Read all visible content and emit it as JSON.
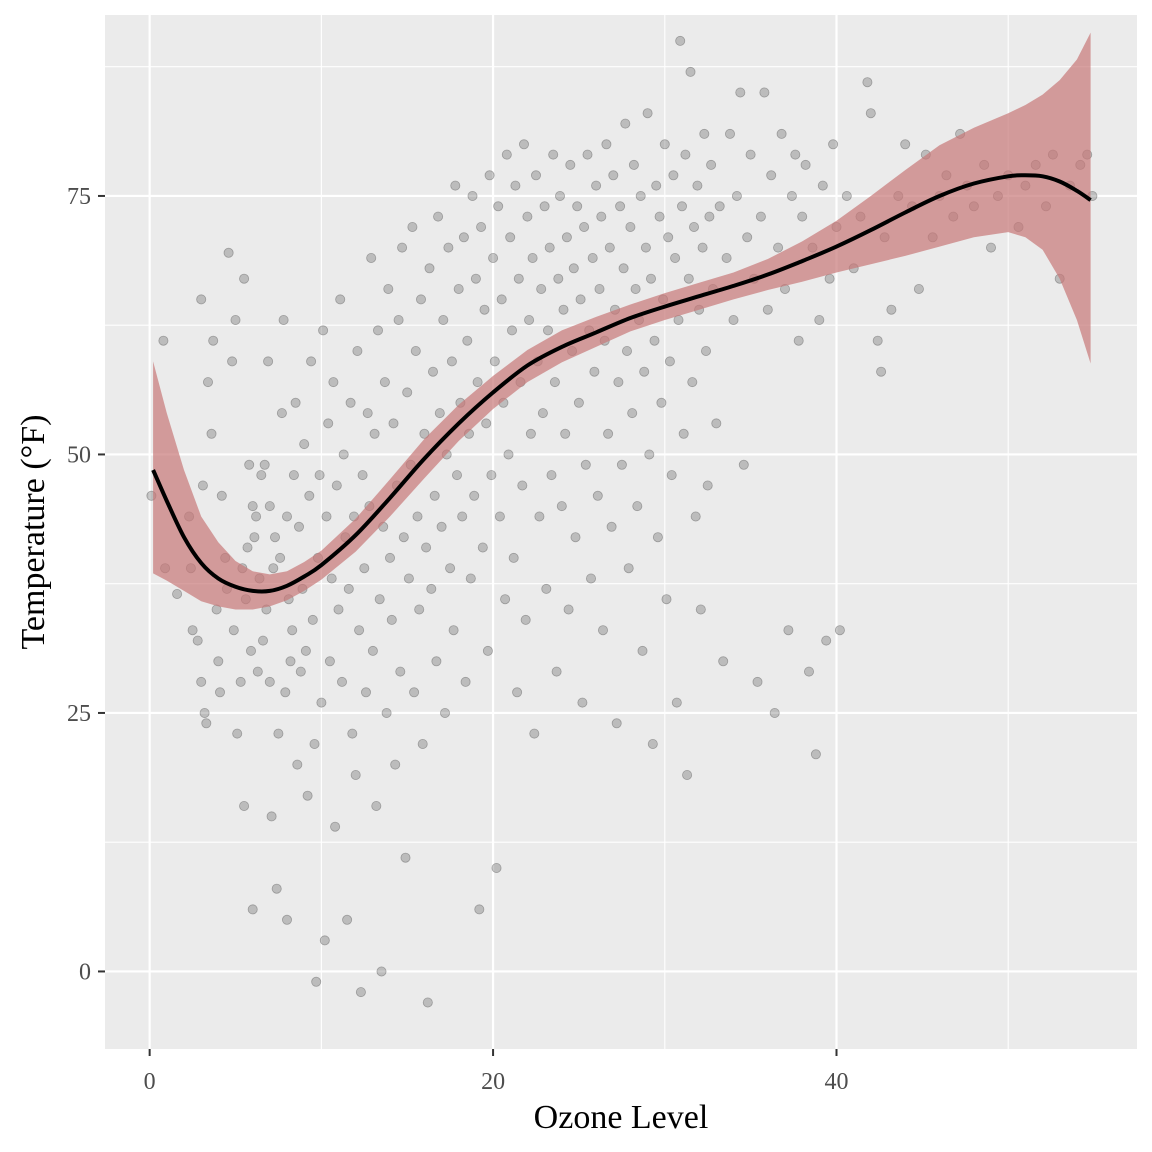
{
  "chart_data": {
    "type": "scatter",
    "xlabel": "Ozone Level",
    "ylabel": "Temperature (°F)",
    "xlim": [
      -2.6,
      57.5
    ],
    "ylim": [
      -7.5,
      92.5
    ],
    "x_ticks": [
      0,
      20,
      40
    ],
    "y_ticks": [
      0,
      25,
      50,
      75
    ],
    "grid": true,
    "colors": {
      "panel": "#ebebeb",
      "grid": "#ffffff",
      "points": "#595959",
      "ribbon": "#c87777",
      "smooth_line": "#000000"
    },
    "points": [
      [
        0.1,
        46
      ],
      [
        0.8,
        61
      ],
      [
        0.9,
        39
      ],
      [
        1.6,
        36.5
      ],
      [
        2.3,
        44
      ],
      [
        2.4,
        39
      ],
      [
        2.5,
        33
      ],
      [
        2.8,
        32
      ],
      [
        3.0,
        65
      ],
      [
        3.0,
        28
      ],
      [
        3.1,
        47
      ],
      [
        3.2,
        25
      ],
      [
        3.3,
        24
      ],
      [
        3.4,
        57
      ],
      [
        3.6,
        52
      ],
      [
        3.7,
        61
      ],
      [
        3.9,
        35
      ],
      [
        4.0,
        30
      ],
      [
        4.1,
        27
      ],
      [
        4.2,
        46
      ],
      [
        4.4,
        40
      ],
      [
        4.5,
        37
      ],
      [
        4.6,
        69.5
      ],
      [
        4.8,
        59
      ],
      [
        4.9,
        33
      ],
      [
        5.0,
        63
      ],
      [
        5.1,
        23
      ],
      [
        5.3,
        28
      ],
      [
        5.4,
        39
      ],
      [
        5.5,
        16
      ],
      [
        5.5,
        67
      ],
      [
        5.6,
        36
      ],
      [
        5.7,
        41
      ],
      [
        5.8,
        49
      ],
      [
        5.9,
        31
      ],
      [
        6.0,
        45
      ],
      [
        6.0,
        6
      ],
      [
        6.1,
        42
      ],
      [
        6.2,
        44
      ],
      [
        6.3,
        29
      ],
      [
        6.4,
        38
      ],
      [
        6.5,
        48
      ],
      [
        6.6,
        32
      ],
      [
        6.7,
        49
      ],
      [
        6.8,
        35
      ],
      [
        6.9,
        59
      ],
      [
        7.0,
        45
      ],
      [
        7.0,
        28
      ],
      [
        7.1,
        15
      ],
      [
        7.2,
        39
      ],
      [
        7.3,
        42
      ],
      [
        7.4,
        8
      ],
      [
        7.5,
        23
      ],
      [
        7.6,
        40
      ],
      [
        7.7,
        54
      ],
      [
        7.8,
        63
      ],
      [
        7.9,
        27
      ],
      [
        8.0,
        44
      ],
      [
        8.0,
        5
      ],
      [
        8.1,
        36
      ],
      [
        8.2,
        30
      ],
      [
        8.3,
        33
      ],
      [
        8.4,
        48
      ],
      [
        8.5,
        55
      ],
      [
        8.6,
        20
      ],
      [
        8.7,
        43
      ],
      [
        8.8,
        29
      ],
      [
        8.9,
        37
      ],
      [
        9.0,
        51
      ],
      [
        9.1,
        31
      ],
      [
        9.2,
        17
      ],
      [
        9.3,
        46
      ],
      [
        9.4,
        59
      ],
      [
        9.5,
        34
      ],
      [
        9.6,
        22
      ],
      [
        9.7,
        -1
      ],
      [
        9.8,
        40
      ],
      [
        9.9,
        48
      ],
      [
        10.0,
        26
      ],
      [
        10.1,
        62
      ],
      [
        10.2,
        3
      ],
      [
        10.3,
        44
      ],
      [
        10.4,
        53
      ],
      [
        10.5,
        30
      ],
      [
        10.6,
        38
      ],
      [
        10.7,
        57
      ],
      [
        10.8,
        14
      ],
      [
        10.9,
        47
      ],
      [
        11.0,
        35
      ],
      [
        11.1,
        65
      ],
      [
        11.2,
        28
      ],
      [
        11.3,
        50
      ],
      [
        11.4,
        42
      ],
      [
        11.5,
        5
      ],
      [
        11.6,
        37
      ],
      [
        11.7,
        55
      ],
      [
        11.8,
        23
      ],
      [
        11.9,
        44
      ],
      [
        12.0,
        19
      ],
      [
        12.1,
        60
      ],
      [
        12.2,
        33
      ],
      [
        12.3,
        -2
      ],
      [
        12.4,
        48
      ],
      [
        12.5,
        39
      ],
      [
        12.6,
        27
      ],
      [
        12.7,
        54
      ],
      [
        12.8,
        45
      ],
      [
        12.9,
        69
      ],
      [
        13.0,
        31
      ],
      [
        13.1,
        52
      ],
      [
        13.2,
        16
      ],
      [
        13.3,
        62
      ],
      [
        13.4,
        36
      ],
      [
        13.5,
        0
      ],
      [
        13.6,
        43
      ],
      [
        13.7,
        57
      ],
      [
        13.8,
        25
      ],
      [
        13.9,
        66
      ],
      [
        14.0,
        40
      ],
      [
        14.1,
        34
      ],
      [
        14.2,
        53
      ],
      [
        14.3,
        20
      ],
      [
        14.4,
        47
      ],
      [
        14.5,
        63
      ],
      [
        14.6,
        29
      ],
      [
        14.7,
        70
      ],
      [
        14.8,
        42
      ],
      [
        14.9,
        11
      ],
      [
        15.0,
        56
      ],
      [
        15.1,
        38
      ],
      [
        15.2,
        49
      ],
      [
        15.3,
        72
      ],
      [
        15.4,
        27
      ],
      [
        15.5,
        60
      ],
      [
        15.6,
        44
      ],
      [
        15.7,
        35
      ],
      [
        15.8,
        65
      ],
      [
        15.9,
        22
      ],
      [
        16.0,
        52
      ],
      [
        16.1,
        41
      ],
      [
        16.2,
        -3
      ],
      [
        16.3,
        68
      ],
      [
        16.4,
        37
      ],
      [
        16.5,
        58
      ],
      [
        16.6,
        46
      ],
      [
        16.7,
        30
      ],
      [
        16.8,
        73
      ],
      [
        16.9,
        54
      ],
      [
        17.0,
        43
      ],
      [
        17.1,
        63
      ],
      [
        17.2,
        25
      ],
      [
        17.3,
        50
      ],
      [
        17.4,
        70
      ],
      [
        17.5,
        39
      ],
      [
        17.6,
        59
      ],
      [
        17.7,
        33
      ],
      [
        17.8,
        76
      ],
      [
        17.9,
        48
      ],
      [
        18.0,
        66
      ],
      [
        18.1,
        55
      ],
      [
        18.2,
        44
      ],
      [
        18.3,
        71
      ],
      [
        18.4,
        28
      ],
      [
        18.5,
        61
      ],
      [
        18.6,
        52
      ],
      [
        18.7,
        38
      ],
      [
        18.8,
        75
      ],
      [
        18.9,
        46
      ],
      [
        19.0,
        67
      ],
      [
        19.1,
        57
      ],
      [
        19.2,
        6
      ],
      [
        19.3,
        72
      ],
      [
        19.4,
        41
      ],
      [
        19.5,
        64
      ],
      [
        19.6,
        53
      ],
      [
        19.7,
        31
      ],
      [
        19.8,
        77
      ],
      [
        19.9,
        48
      ],
      [
        20.0,
        69
      ],
      [
        20.1,
        59
      ],
      [
        20.2,
        10
      ],
      [
        20.3,
        74
      ],
      [
        20.4,
        44
      ],
      [
        20.5,
        65
      ],
      [
        20.6,
        55
      ],
      [
        20.7,
        36
      ],
      [
        20.8,
        79
      ],
      [
        20.9,
        50
      ],
      [
        21.0,
        71
      ],
      [
        21.1,
        62
      ],
      [
        21.2,
        40
      ],
      [
        21.3,
        76
      ],
      [
        21.4,
        27
      ],
      [
        21.5,
        67
      ],
      [
        21.6,
        57
      ],
      [
        21.7,
        47
      ],
      [
        21.8,
        80
      ],
      [
        21.9,
        34
      ],
      [
        22.0,
        73
      ],
      [
        22.1,
        63
      ],
      [
        22.2,
        52
      ],
      [
        22.3,
        69
      ],
      [
        22.4,
        23
      ],
      [
        22.5,
        77
      ],
      [
        22.6,
        59
      ],
      [
        22.7,
        44
      ],
      [
        22.8,
        66
      ],
      [
        22.9,
        54
      ],
      [
        23.0,
        74
      ],
      [
        23.1,
        37
      ],
      [
        23.2,
        62
      ],
      [
        23.3,
        70
      ],
      [
        23.4,
        48
      ],
      [
        23.5,
        79
      ],
      [
        23.6,
        57
      ],
      [
        23.7,
        29
      ],
      [
        23.8,
        67
      ],
      [
        23.9,
        75
      ],
      [
        24.0,
        45
      ],
      [
        24.1,
        64
      ],
      [
        24.2,
        52
      ],
      [
        24.3,
        71
      ],
      [
        24.4,
        35
      ],
      [
        24.5,
        78
      ],
      [
        24.6,
        60
      ],
      [
        24.7,
        68
      ],
      [
        24.8,
        42
      ],
      [
        24.9,
        74
      ],
      [
        25.0,
        55
      ],
      [
        25.1,
        65
      ],
      [
        25.2,
        26
      ],
      [
        25.3,
        72
      ],
      [
        25.4,
        49
      ],
      [
        25.5,
        79
      ],
      [
        25.6,
        62
      ],
      [
        25.7,
        38
      ],
      [
        25.8,
        69
      ],
      [
        25.9,
        58
      ],
      [
        26.0,
        76
      ],
      [
        26.1,
        46
      ],
      [
        26.2,
        66
      ],
      [
        26.3,
        73
      ],
      [
        26.4,
        33
      ],
      [
        26.5,
        61
      ],
      [
        26.6,
        80
      ],
      [
        26.7,
        52
      ],
      [
        26.8,
        70
      ],
      [
        26.9,
        43
      ],
      [
        27.0,
        77
      ],
      [
        27.1,
        64
      ],
      [
        27.2,
        24
      ],
      [
        27.3,
        57
      ],
      [
        27.4,
        74
      ],
      [
        27.5,
        49
      ],
      [
        27.6,
        68
      ],
      [
        27.7,
        82
      ],
      [
        27.8,
        60
      ],
      [
        27.9,
        39
      ],
      [
        28.0,
        72
      ],
      [
        28.1,
        54
      ],
      [
        28.2,
        78
      ],
      [
        28.3,
        66
      ],
      [
        28.4,
        45
      ],
      [
        28.5,
        63
      ],
      [
        28.6,
        75
      ],
      [
        28.7,
        31
      ],
      [
        28.8,
        58
      ],
      [
        28.9,
        70
      ],
      [
        29.0,
        83
      ],
      [
        29.1,
        50
      ],
      [
        29.2,
        67
      ],
      [
        29.3,
        22
      ],
      [
        29.4,
        61
      ],
      [
        29.5,
        76
      ],
      [
        29.6,
        42
      ],
      [
        29.7,
        73
      ],
      [
        29.8,
        55
      ],
      [
        29.9,
        65
      ],
      [
        30.0,
        80
      ],
      [
        30.1,
        36
      ],
      [
        30.2,
        71
      ],
      [
        30.3,
        59
      ],
      [
        30.4,
        48
      ],
      [
        30.5,
        77
      ],
      [
        30.6,
        69
      ],
      [
        30.7,
        26
      ],
      [
        30.8,
        63
      ],
      [
        30.9,
        90
      ],
      [
        31.0,
        74
      ],
      [
        31.1,
        52
      ],
      [
        31.2,
        79
      ],
      [
        31.3,
        19
      ],
      [
        31.4,
        67
      ],
      [
        31.5,
        87
      ],
      [
        31.6,
        57
      ],
      [
        31.7,
        72
      ],
      [
        31.8,
        44
      ],
      [
        31.9,
        76
      ],
      [
        32.0,
        64
      ],
      [
        32.1,
        35
      ],
      [
        32.2,
        70
      ],
      [
        32.3,
        81
      ],
      [
        32.4,
        60
      ],
      [
        32.5,
        47
      ],
      [
        32.6,
        73
      ],
      [
        32.7,
        78
      ],
      [
        32.8,
        66
      ],
      [
        33.0,
        53
      ],
      [
        33.2,
        74
      ],
      [
        33.4,
        30
      ],
      [
        33.6,
        69
      ],
      [
        33.8,
        81
      ],
      [
        34.0,
        63
      ],
      [
        34.2,
        75
      ],
      [
        34.4,
        85
      ],
      [
        34.6,
        49
      ],
      [
        34.8,
        71
      ],
      [
        35.0,
        79
      ],
      [
        35.2,
        67
      ],
      [
        35.4,
        28
      ],
      [
        35.6,
        73
      ],
      [
        35.8,
        85
      ],
      [
        36.0,
        64
      ],
      [
        36.2,
        77
      ],
      [
        36.4,
        25
      ],
      [
        36.6,
        70
      ],
      [
        36.8,
        81
      ],
      [
        37.0,
        66
      ],
      [
        37.2,
        33
      ],
      [
        37.4,
        75
      ],
      [
        37.6,
        79
      ],
      [
        37.8,
        61
      ],
      [
        38.0,
        73
      ],
      [
        38.2,
        78
      ],
      [
        38.4,
        29
      ],
      [
        38.6,
        70
      ],
      [
        38.8,
        21
      ],
      [
        39.0,
        63
      ],
      [
        39.2,
        76
      ],
      [
        39.4,
        32
      ],
      [
        39.6,
        67
      ],
      [
        39.8,
        80
      ],
      [
        40.0,
        72
      ],
      [
        40.2,
        33
      ],
      [
        40.6,
        75
      ],
      [
        41.0,
        68
      ],
      [
        41.4,
        73
      ],
      [
        41.8,
        86
      ],
      [
        42.0,
        83
      ],
      [
        42.4,
        61
      ],
      [
        42.6,
        58
      ],
      [
        42.8,
        71
      ],
      [
        43.2,
        64
      ],
      [
        43.6,
        75
      ],
      [
        44.0,
        80
      ],
      [
        44.4,
        74
      ],
      [
        44.8,
        66
      ],
      [
        45.2,
        79
      ],
      [
        45.6,
        71
      ],
      [
        46.0,
        75
      ],
      [
        46.4,
        77
      ],
      [
        46.8,
        73
      ],
      [
        47.2,
        81
      ],
      [
        47.6,
        76
      ],
      [
        48.0,
        74
      ],
      [
        48.6,
        78
      ],
      [
        49.0,
        70
      ],
      [
        49.4,
        75
      ],
      [
        50.0,
        77
      ],
      [
        50.6,
        72
      ],
      [
        51.0,
        76
      ],
      [
        51.6,
        78
      ],
      [
        52.2,
        74
      ],
      [
        52.6,
        79
      ],
      [
        53.0,
        67
      ],
      [
        53.6,
        76
      ],
      [
        54.2,
        78
      ],
      [
        54.6,
        79
      ],
      [
        54.9,
        75
      ]
    ],
    "smooth_line": {
      "x": [
        0.2,
        1.0,
        2.0,
        3.0,
        4.0,
        5.0,
        6.0,
        7.0,
        8.0,
        9.0,
        10.0,
        12.0,
        14.0,
        16.0,
        18.0,
        20.0,
        22.0,
        24.0,
        26.0,
        28.0,
        30.0,
        32.0,
        34.0,
        36.0,
        38.0,
        40.0,
        42.0,
        44.0,
        46.0,
        48.0,
        50.0,
        51.0,
        52.0,
        53.0,
        54.0,
        54.8
      ],
      "y": [
        48.5,
        45.5,
        42.0,
        39.5,
        38.0,
        37.2,
        36.8,
        36.8,
        37.3,
        38.2,
        39.3,
        42.2,
        45.8,
        49.6,
        53.0,
        56.0,
        58.6,
        60.4,
        61.8,
        63.2,
        64.3,
        65.3,
        66.3,
        67.4,
        68.7,
        70.1,
        71.7,
        73.4,
        75.0,
        76.2,
        76.9,
        77.0,
        76.9,
        76.4,
        75.5,
        74.6
      ]
    },
    "ribbon": {
      "x": [
        0.2,
        1.0,
        2.0,
        3.0,
        4.0,
        5.0,
        6.0,
        7.0,
        8.0,
        9.0,
        10.0,
        12.0,
        14.0,
        16.0,
        18.0,
        20.0,
        22.0,
        24.0,
        26.0,
        28.0,
        30.0,
        32.0,
        34.0,
        36.0,
        38.0,
        40.0,
        42.0,
        44.0,
        46.0,
        48.0,
        50.0,
        51.0,
        52.0,
        53.0,
        54.0,
        54.8
      ],
      "lower": [
        38.5,
        37.8,
        36.8,
        35.8,
        35.3,
        35.0,
        35.0,
        35.3,
        35.9,
        36.8,
        37.9,
        40.6,
        44.0,
        47.7,
        51.3,
        54.4,
        57.0,
        58.9,
        60.4,
        61.9,
        63.0,
        64.0,
        65.0,
        65.9,
        66.7,
        67.6,
        68.4,
        69.2,
        70.1,
        71.0,
        71.5,
        71.0,
        69.8,
        67.0,
        63.0,
        58.8
      ],
      "upper": [
        59.0,
        54.0,
        48.5,
        44.0,
        41.5,
        39.7,
        38.7,
        38.4,
        38.7,
        39.6,
        40.7,
        43.8,
        47.6,
        51.5,
        54.8,
        57.6,
        60.1,
        62.0,
        63.3,
        64.5,
        65.6,
        66.6,
        67.6,
        68.9,
        70.6,
        72.6,
        75.0,
        77.5,
        79.9,
        81.6,
        83.0,
        83.8,
        84.8,
        86.2,
        88.2,
        90.8
      ]
    }
  }
}
